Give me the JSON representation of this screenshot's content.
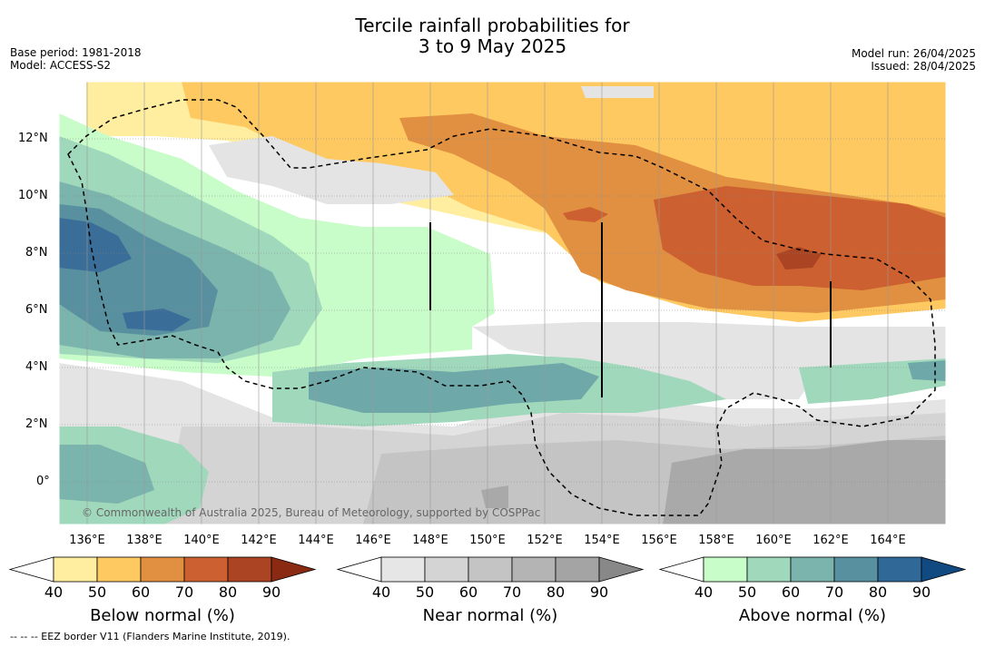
{
  "title": {
    "line1": "Tercile rainfall probabilities for",
    "line2": "3 to 9 May 2025"
  },
  "meta": {
    "base_period": "Base period: 1981-2018",
    "model": "Model: ACCESS-S2",
    "model_run": "Model run: 26/04/2025",
    "issued": "Issued: 28/04/2025"
  },
  "credit": "© Commonwealth of Australia 2025, Bureau of Meteorology, supported by COSPPac",
  "footer": "-- -- -- EEZ border V11 (Flanders Marine Institute, 2019).",
  "axes": {
    "lat_labels": [
      "12°N",
      "10°N",
      "8°N",
      "6°N",
      "4°N",
      "2°N",
      "0°"
    ],
    "lon_labels": [
      "136°E",
      "138°E",
      "140°E",
      "142°E",
      "144°E",
      "146°E",
      "148°E",
      "150°E",
      "152°E",
      "154°E",
      "156°E",
      "158°E",
      "160°E",
      "162°E",
      "164°E"
    ]
  },
  "legend": {
    "below": {
      "label": "Below normal (%)",
      "ticks": [
        "40",
        "50",
        "60",
        "70",
        "80",
        "90"
      ],
      "colors": [
        "#ffffff",
        "#ffeda0",
        "#fec960",
        "#e09040",
        "#cc6030",
        "#aa4422",
        "#8b2a12"
      ]
    },
    "near": {
      "label": "Near normal (%)",
      "ticks": [
        "40",
        "50",
        "60",
        "70",
        "80",
        "90"
      ],
      "colors": [
        "#ffffff",
        "#e6e6e6",
        "#d4d4d4",
        "#c4c4c4",
        "#b4b4b4",
        "#a4a4a4",
        "#888888"
      ]
    },
    "above": {
      "label": "Above normal (%)",
      "ticks": [
        "40",
        "50",
        "60",
        "70",
        "80",
        "90"
      ],
      "colors": [
        "#ffffff",
        "#c8fcc8",
        "#a0d8bc",
        "#7ab4ac",
        "#5890a0",
        "#306898",
        "#104a80"
      ]
    }
  }
}
